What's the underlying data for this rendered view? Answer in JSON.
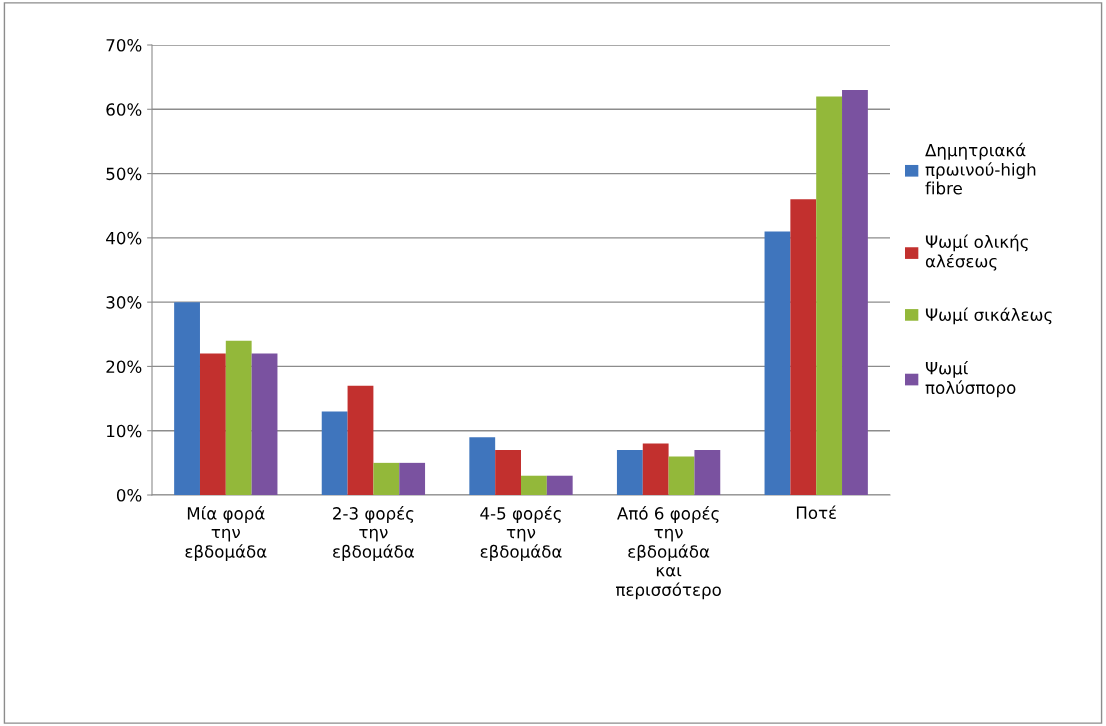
{
  "chart_data": {
    "type": "bar",
    "categories": [
      "Μία φορά\nτην\nεβδομάδα",
      "2-3 φορές\nτην\nεβδομάδα",
      "4-5 φορές\nτην\nεβδομάδα",
      "Από 6 φορές\nτην\nεβδομάδα\nκαι\nπερισσότερο",
      "Ποτέ"
    ],
    "series": [
      {
        "name": "Δημητριακά\nπρωινού-high\nfibre",
        "color": "#3f75bd",
        "values": [
          30,
          13,
          9,
          7,
          41
        ]
      },
      {
        "name": "Ψωμί ολικής\nαλέσεως",
        "color": "#c2302e",
        "values": [
          22,
          17,
          7,
          8,
          46
        ]
      },
      {
        "name": "Ψωμί σικάλεως",
        "color": "#93b83a",
        "values": [
          24,
          5,
          3,
          6,
          62
        ]
      },
      {
        "name": "Ψωμί\nπολύσπορο",
        "color": "#7a52a0",
        "values": [
          22,
          5,
          3,
          7,
          63
        ]
      }
    ],
    "ylim": [
      0,
      70
    ],
    "yticks": [
      {
        "value": 0,
        "label": "0%"
      },
      {
        "value": 10,
        "label": "10%"
      },
      {
        "value": 20,
        "label": "20%"
      },
      {
        "value": 30,
        "label": "30%"
      },
      {
        "value": 40,
        "label": "40%"
      },
      {
        "value": 50,
        "label": "50%"
      },
      {
        "value": 60,
        "label": "60%"
      },
      {
        "value": 70,
        "label": "70%"
      }
    ],
    "grid": "y",
    "legend": "right"
  }
}
